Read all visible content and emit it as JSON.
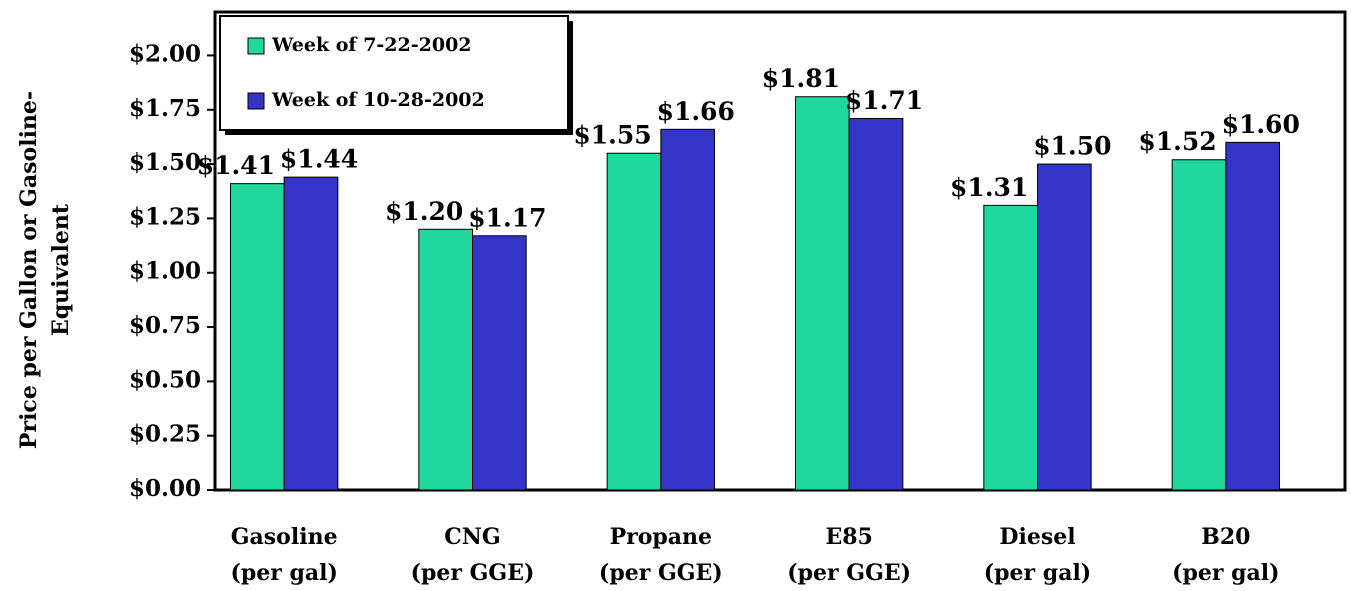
{
  "chart_data": {
    "type": "bar",
    "y_label": [
      "Price per Gallon or Gasoline-",
      "Equivalent"
    ],
    "categories": [
      [
        "Gasoline",
        "(per gal)"
      ],
      [
        "CNG",
        "(per GGE)"
      ],
      [
        "Propane",
        "(per GGE)"
      ],
      [
        "E85",
        "(per GGE)"
      ],
      [
        "Diesel",
        "(per gal)"
      ],
      [
        "B20",
        "(per gal)"
      ]
    ],
    "series": [
      {
        "name": "Week of 7-22-2002",
        "color": "#20d89e",
        "values": [
          1.41,
          1.2,
          1.55,
          1.81,
          1.31,
          1.52
        ],
        "value_labels": [
          "$1.41",
          "$1.20",
          "$1.55",
          "$1.81",
          "$1.31",
          "$1.52"
        ]
      },
      {
        "name": "Week of 10-28-2002",
        "color": "#3434c8",
        "values": [
          1.44,
          1.17,
          1.66,
          1.71,
          1.5,
          1.6
        ],
        "value_labels": [
          "$1.44",
          "$1.17",
          "$1.66",
          "$1.71",
          "$1.50",
          "$1.60"
        ]
      }
    ],
    "ylim": [
      0,
      2.2
    ],
    "yticks": [
      {
        "value": 0,
        "label": "$0.00"
      },
      {
        "value": 0.25,
        "label": "$0.25"
      },
      {
        "value": 0.5,
        "label": "$0.50"
      },
      {
        "value": 0.75,
        "label": "$0.75"
      },
      {
        "value": 1,
        "label": "$1.00"
      },
      {
        "value": 1.25,
        "label": "$1.25"
      },
      {
        "value": 1.5,
        "label": "$1.50"
      },
      {
        "value": 1.75,
        "label": "$1.75"
      },
      {
        "value": 2,
        "label": "$2.00"
      }
    ],
    "legend": "top-left"
  }
}
